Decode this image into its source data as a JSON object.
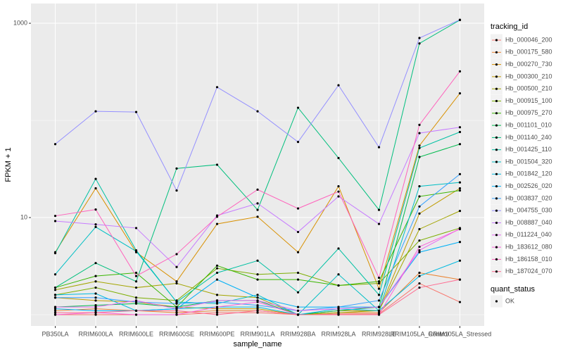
{
  "chart_data": {
    "type": "line",
    "x_label": "sample_name",
    "y_label": "FPKM + 1",
    "log_y": true,
    "grid": true,
    "categories": [
      "PB350LA",
      "RRIM600LA",
      "RRIM600LE",
      "RRIM600SE",
      "RRIM600PE",
      "RRIM901LA",
      "RRIM928BA",
      "RRIM928LA",
      "RRIM928LE",
      "RRIM105LA_Control",
      "RRIM105LA_Stressed"
    ],
    "ylim": [
      0.766,
      1597
    ],
    "yticks": [
      10,
      1000
    ],
    "legend_title": "tracking_id",
    "legend_position": "right",
    "marker_legend_title": "quant_status",
    "marker_legend_label": "OK",
    "marker_color": "#000000",
    "series": [
      {
        "name": "Hb_000046_200",
        "color": "#F8766D",
        "values": [
          1.0,
          1.0,
          1.0,
          1.0,
          1.05,
          1.05,
          1.0,
          1.02,
          1.02,
          2.1,
          1.35
        ]
      },
      {
        "name": "Hb_000175_580",
        "color": "#EA8331",
        "values": [
          1.1,
          1.15,
          1.1,
          1.05,
          1.1,
          1.1,
          1.0,
          1.05,
          1.05,
          2.7,
          2.3
        ]
      },
      {
        "name": "Hb_000270_730",
        "color": "#D89000",
        "values": [
          4.4,
          20,
          4.4,
          2.2,
          8.6,
          10.2,
          4.4,
          21,
          1.85,
          55,
          190
        ]
      },
      {
        "name": "Hb_000300_210",
        "color": "#C09B00",
        "values": [
          1.5,
          1.4,
          1.35,
          1.2,
          1.15,
          1.15,
          1.0,
          1.1,
          1.1,
          11,
          20
        ]
      },
      {
        "name": "Hb_000500_210",
        "color": "#A3A500",
        "values": [
          1.8,
          2.2,
          1.9,
          2.1,
          1.6,
          1.5,
          1.0,
          1.05,
          1.1,
          7.6,
          11.7
        ]
      },
      {
        "name": "Hb_000915_100",
        "color": "#7CAE00",
        "values": [
          1.6,
          1.9,
          1.5,
          1.4,
          3.0,
          2.6,
          2.7,
          2.0,
          2.1,
          5.8,
          7.8
        ]
      },
      {
        "name": "Hb_000975_270",
        "color": "#39B600",
        "values": [
          1.9,
          2.5,
          2.7,
          1.2,
          3.2,
          2.3,
          2.3,
          2.0,
          2.2,
          16.5,
          19
        ]
      },
      {
        "name": "Hb_001101_010",
        "color": "#00BB4E",
        "values": [
          1.2,
          1.25,
          1.3,
          1.2,
          1.4,
          1.4,
          1.0,
          1.1,
          1.2,
          42,
          57
        ]
      },
      {
        "name": "Hb_001140_240",
        "color": "#00BF7D",
        "values": [
          1.9,
          3.4,
          2.2,
          32,
          35,
          12,
          135,
          41,
          12,
          620,
          1080
        ]
      },
      {
        "name": "Hb_001425_110",
        "color": "#00C1A3",
        "values": [
          4.3,
          25,
          4.6,
          1.35,
          2.7,
          3.6,
          1.7,
          4.8,
          1.6,
          52,
          76
        ]
      },
      {
        "name": "Hb_001504_320",
        "color": "#00BFC4",
        "values": [
          2.6,
          8.0,
          4.5,
          1.35,
          1.3,
          1.6,
          1.0,
          2.6,
          1.1,
          21,
          23
        ]
      },
      {
        "name": "Hb_001842_120",
        "color": "#00BAE0",
        "values": [
          1.6,
          1.65,
          1.1,
          1.15,
          1.2,
          1.2,
          1.0,
          1.15,
          1.1,
          2.5,
          3.6
        ]
      },
      {
        "name": "Hb_002526_020",
        "color": "#00B0F6",
        "values": [
          1.15,
          1.1,
          1.1,
          1.15,
          2.3,
          1.5,
          1.2,
          1.2,
          1.2,
          4.4,
          5.6
        ]
      },
      {
        "name": "Hb_003837_020",
        "color": "#35A2FF",
        "values": [
          1.5,
          1.5,
          1.35,
          1.3,
          1.35,
          1.25,
          1.1,
          1.2,
          1.4,
          13,
          28
        ]
      },
      {
        "name": "Hb_004755_030",
        "color": "#9590FF",
        "values": [
          57,
          124,
          122,
          19,
          220,
          124,
          60,
          230,
          53,
          705,
          1087
        ]
      },
      {
        "name": "Hb_008887_040",
        "color": "#C77CFF",
        "values": [
          9.2,
          8.5,
          7.8,
          3.1,
          10.5,
          14,
          7.1,
          16.5,
          8.6,
          74,
          85
        ]
      },
      {
        "name": "Hb_011224_040",
        "color": "#E76BF3",
        "values": [
          1.2,
          1.2,
          1.4,
          1.15,
          1.4,
          1.4,
          1.1,
          1.15,
          1.2,
          4.6,
          7.7
        ]
      },
      {
        "name": "Hb_183612_080",
        "color": "#FA62DB",
        "values": [
          1.0,
          1.05,
          1.0,
          1.0,
          1.2,
          1.35,
          1.0,
          1.0,
          1.0,
          5.0,
          7.6
        ]
      },
      {
        "name": "Hb_186158_010",
        "color": "#FF62BC",
        "values": [
          10.4,
          12.1,
          2.5,
          4.2,
          10.2,
          19.4,
          12.4,
          18.5,
          2.4,
          90,
          320
        ]
      },
      {
        "name": "Hb_187024_070",
        "color": "#FF6C91",
        "values": [
          1.05,
          1.05,
          1.1,
          1.1,
          1.0,
          1.1,
          1.0,
          1.0,
          1.0,
          1.9,
          2.3
        ]
      }
    ]
  }
}
